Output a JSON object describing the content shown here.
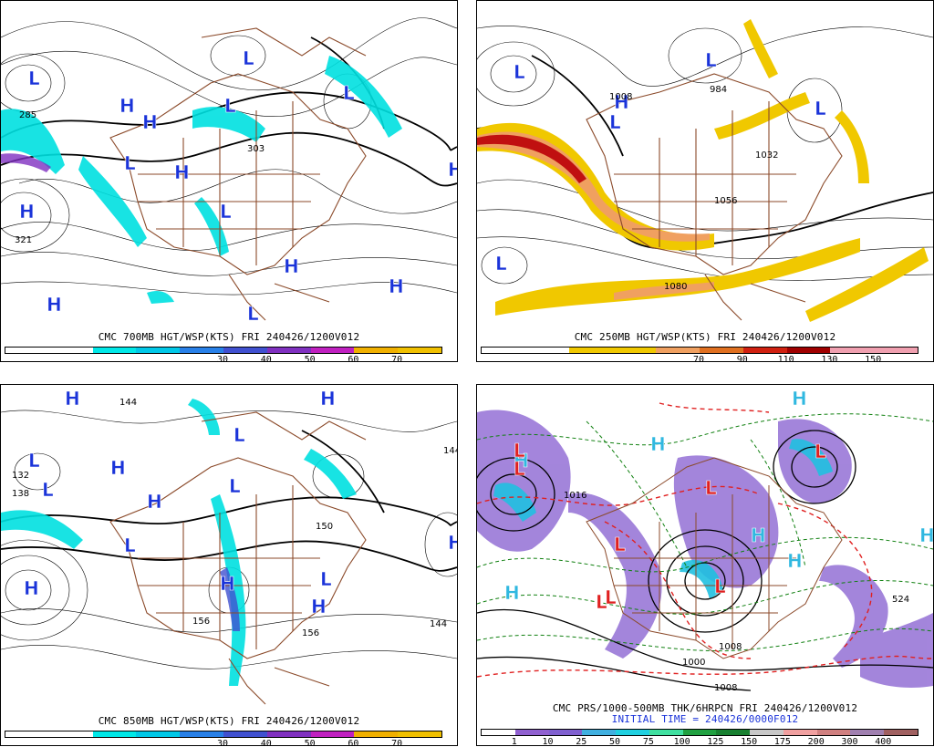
{
  "panels": [
    {
      "caption": "CMC 700MB HGT/WSP(KTS) FRI 240426/1200V012",
      "colorbar": {
        "colors": [
          "#ffffff",
          "#ffffff",
          "#00e8e8",
          "#00c8e8",
          "#2880e8",
          "#4050d0",
          "#8030c0",
          "#c020c0",
          "#f0b000",
          "#f0c000"
        ],
        "ticks": [
          "30",
          "40",
          "50",
          "60",
          "70"
        ]
      },
      "symbols": [
        "L",
        "H",
        "H",
        "L",
        "H",
        "L",
        "L",
        "H",
        "L",
        "H",
        "H",
        "L",
        "H",
        "L",
        "H"
      ],
      "contour_labels": [
        "285",
        "321",
        "303"
      ]
    },
    {
      "caption": "CMC 250MB HGT/WSP(KTS) FRI 240426/1200V012",
      "colorbar": {
        "colors": [
          "#ffffff",
          "#ffffff",
          "#f0c800",
          "#f0c800",
          "#f0a060",
          "#e07020",
          "#d02010",
          "#a00000",
          "#f0a0b0",
          "#f0a0b0"
        ],
        "ticks": [
          "70",
          "90",
          "110",
          "130",
          "150"
        ]
      },
      "symbols": [
        "L",
        "L",
        "H",
        "L",
        "L",
        "L"
      ],
      "contour_labels": [
        "1008",
        "984",
        "1032",
        "1056",
        "1080"
      ]
    },
    {
      "caption": "CMC 850MB HGT/WSP(KTS) FRI 240426/1200V012",
      "colorbar": {
        "colors": [
          "#ffffff",
          "#ffffff",
          "#00e8e8",
          "#00c8e8",
          "#2880e8",
          "#4050d0",
          "#8030c0",
          "#c020c0",
          "#f0b000",
          "#f0c000"
        ],
        "ticks": [
          "30",
          "40",
          "50",
          "60",
          "70"
        ]
      },
      "symbols": [
        "H",
        "L",
        "L",
        "H",
        "H",
        "L",
        "L",
        "H",
        "L",
        "H",
        "L",
        "H",
        "H",
        "H"
      ],
      "contour_labels": [
        "144",
        "132",
        "138",
        "150",
        "144",
        "156",
        "156",
        "144"
      ]
    },
    {
      "caption": "CMC PRS/1000-500MB THK/6HRPCN FRI 240426/1200V012",
      "caption2": "INITIAL TIME = 240426/0000F012",
      "colorbar": {
        "colors": [
          "#ffffff",
          "#9060d0",
          "#8060d0",
          "#40b0e0",
          "#20d0e0",
          "#40e0a0",
          "#20a040",
          "#188030",
          "#c8c8c8",
          "#f0a0a0",
          "#d08080",
          "#a080b0",
          "#a06060"
        ],
        "ticks": [
          "1",
          "10",
          "25",
          "50",
          "75",
          "100",
          "125",
          "150",
          "175",
          "200",
          "300",
          "400"
        ]
      },
      "symbols": [
        "H",
        "L",
        "L",
        "L",
        "H",
        "L",
        "H",
        "L",
        "L",
        "L",
        "H",
        "L",
        "H",
        "H",
        "H"
      ],
      "contour_labels": [
        "1016",
        "1008",
        "1000",
        "1008",
        "524"
      ]
    }
  ]
}
